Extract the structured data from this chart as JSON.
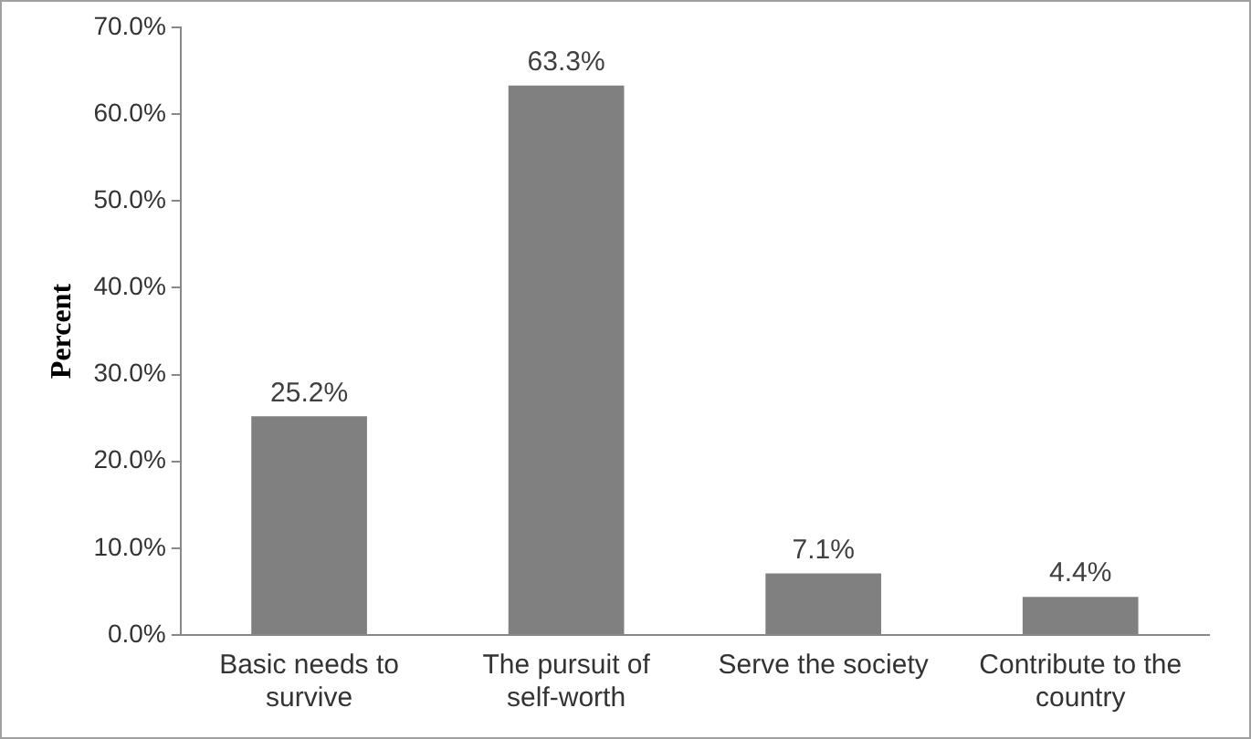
{
  "chart_data": {
    "type": "bar",
    "ylabel": "Percent",
    "categories": [
      "Basic needs to survive",
      "The pursuit of self-worth",
      "Serve the society",
      "Contribute to the country"
    ],
    "values": [
      25.2,
      63.3,
      7.1,
      4.4
    ],
    "color": "#808080",
    "value_labels": [
      "25.2%",
      "63.3%",
      "7.1%",
      "4.4%"
    ],
    "ylim": [
      0,
      70
    ],
    "yticks": [
      {
        "value": 0,
        "label": "0.0%"
      },
      {
        "value": 10,
        "label": "10.0%"
      },
      {
        "value": 20,
        "label": "20.0%"
      },
      {
        "value": 30,
        "label": "30.0%"
      },
      {
        "value": 40,
        "label": "40.0%"
      },
      {
        "value": 50,
        "label": "50.0%"
      },
      {
        "value": 60,
        "label": "60.0%"
      },
      {
        "value": 70,
        "label": "70.0%"
      }
    ],
    "grid": false,
    "legend": false
  }
}
